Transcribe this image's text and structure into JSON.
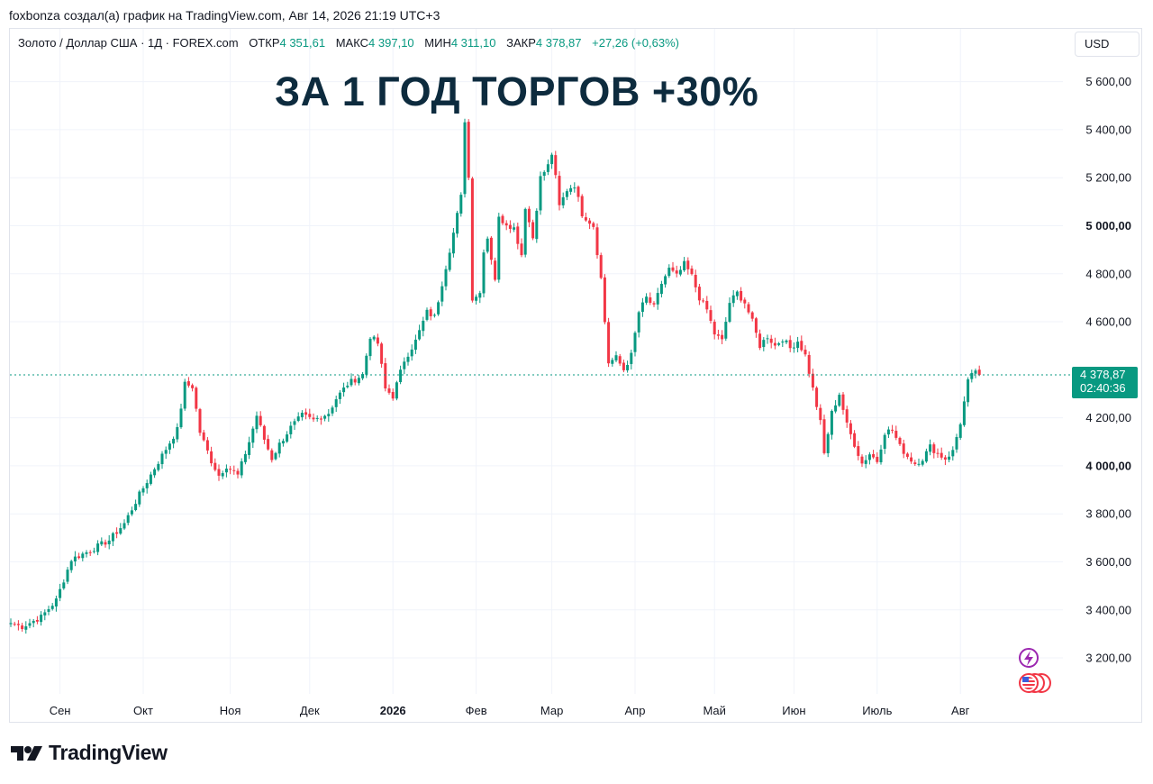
{
  "author_line": "foxbonza создал(а) график на TradingView.com, Авг 14, 2026 21:19 UTC+3",
  "legend": {
    "symbol": "Золото / Доллар США · 1Д · FOREX.com",
    "open_label": "ОТКР",
    "open_value": "4 351,61",
    "high_label": "МАКС",
    "high_value": "4 397,10",
    "low_label": "МИН",
    "low_value": "4 311,10",
    "close_label": "ЗАКР",
    "close_value": "4 378,87",
    "change": "+27,26 (+0,63%)"
  },
  "currency": "USD",
  "headline": "ЗА 1 ГОД ТОРГОВ +30%",
  "logo_text": "TradingView",
  "price_tag": {
    "price": "4 378,87",
    "timer": "02:40:36"
  },
  "colors": {
    "up": "#089981",
    "down": "#f23645",
    "headline": "#0d2b3e",
    "price_tag": "#089981",
    "grid": "#f0f3fa"
  },
  "icons": [
    "lightning-icon",
    "us-flag-icon"
  ],
  "chart_data": {
    "type": "candlestick",
    "symbol": "Золото / Доллар США",
    "interval": "1Д",
    "last_price": 4378.87,
    "ylim": [
      3050,
      5700
    ],
    "y_ticks": [
      {
        "value": 3200,
        "label": "3 200,00"
      },
      {
        "value": 3400,
        "label": "3 400,00"
      },
      {
        "value": 3600,
        "label": "3 600,00"
      },
      {
        "value": 3800,
        "label": "3 800,00"
      },
      {
        "value": 4000,
        "label": "4 000,00",
        "bold": true
      },
      {
        "value": 4200,
        "label": "4 200,00"
      },
      {
        "value": 4600,
        "label": "4 600,00"
      },
      {
        "value": 4800,
        "label": "4 800,00"
      },
      {
        "value": 5000,
        "label": "5 000,00",
        "bold": true
      },
      {
        "value": 5200,
        "label": "5 200,00"
      },
      {
        "value": 5400,
        "label": "5 400,00"
      },
      {
        "value": 5600,
        "label": "5 600,00"
      }
    ],
    "x_ticks": [
      {
        "index": 13,
        "label": "Сен"
      },
      {
        "index": 35,
        "label": "Окт"
      },
      {
        "index": 58,
        "label": "Ноя"
      },
      {
        "index": 79,
        "label": "Дек"
      },
      {
        "index": 101,
        "label": "2026",
        "bold": true
      },
      {
        "index": 123,
        "label": "Фев"
      },
      {
        "index": 143,
        "label": "Мар"
      },
      {
        "index": 165,
        "label": "Апр"
      },
      {
        "index": 186,
        "label": "Май"
      },
      {
        "index": 207,
        "label": "Июн"
      },
      {
        "index": 229,
        "label": "Июль"
      },
      {
        "index": 251,
        "label": "Авг"
      }
    ],
    "anchors": [
      [
        0,
        3345
      ],
      [
        3,
        3330
      ],
      [
        8,
        3370
      ],
      [
        12,
        3440
      ],
      [
        16,
        3610
      ],
      [
        20,
        3640
      ],
      [
        26,
        3690
      ],
      [
        30,
        3760
      ],
      [
        34,
        3880
      ],
      [
        38,
        3990
      ],
      [
        41,
        4070
      ],
      [
        44,
        4150
      ],
      [
        46,
        4340
      ],
      [
        48,
        4330
      ],
      [
        50,
        4140
      ],
      [
        53,
        4020
      ],
      [
        55,
        3960
      ],
      [
        57,
        4000
      ],
      [
        60,
        3960
      ],
      [
        63,
        4100
      ],
      [
        65,
        4210
      ],
      [
        67,
        4110
      ],
      [
        69,
        4030
      ],
      [
        71,
        4090
      ],
      [
        74,
        4160
      ],
      [
        77,
        4210
      ],
      [
        80,
        4190
      ],
      [
        84,
        4220
      ],
      [
        86,
        4280
      ],
      [
        89,
        4340
      ],
      [
        93,
        4380
      ],
      [
        95,
        4540
      ],
      [
        97,
        4510
      ],
      [
        99,
        4320
      ],
      [
        101,
        4290
      ],
      [
        104,
        4440
      ],
      [
        107,
        4520
      ],
      [
        110,
        4640
      ],
      [
        112,
        4620
      ],
      [
        114,
        4760
      ],
      [
        117,
        4970
      ],
      [
        119,
        5120
      ],
      [
        120,
        5440
      ],
      [
        121,
        5200
      ],
      [
        122,
        4700
      ],
      [
        124,
        4720
      ],
      [
        125,
        4900
      ],
      [
        126,
        4950
      ],
      [
        128,
        4780
      ],
      [
        129,
        5030
      ],
      [
        131,
        5010
      ],
      [
        133,
        4990
      ],
      [
        135,
        4880
      ],
      [
        136,
        5080
      ],
      [
        138,
        4950
      ],
      [
        140,
        5200
      ],
      [
        142,
        5250
      ],
      [
        143,
        5300
      ],
      [
        144,
        5200
      ],
      [
        145,
        5080
      ],
      [
        147,
        5150
      ],
      [
        149,
        5170
      ],
      [
        151,
        5050
      ],
      [
        154,
        5000
      ],
      [
        156,
        4780
      ],
      [
        157,
        4600
      ],
      [
        158,
        4430
      ],
      [
        160,
        4450
      ],
      [
        162,
        4400
      ],
      [
        164,
        4460
      ],
      [
        166,
        4640
      ],
      [
        168,
        4700
      ],
      [
        170,
        4660
      ],
      [
        172,
        4760
      ],
      [
        174,
        4820
      ],
      [
        176,
        4790
      ],
      [
        178,
        4840
      ],
      [
        180,
        4790
      ],
      [
        182,
        4700
      ],
      [
        184,
        4650
      ],
      [
        186,
        4550
      ],
      [
        188,
        4520
      ],
      [
        190,
        4680
      ],
      [
        192,
        4720
      ],
      [
        194,
        4680
      ],
      [
        196,
        4600
      ],
      [
        198,
        4500
      ],
      [
        200,
        4540
      ],
      [
        202,
        4500
      ],
      [
        204,
        4530
      ],
      [
        206,
        4490
      ],
      [
        208,
        4520
      ],
      [
        210,
        4460
      ],
      [
        212,
        4320
      ],
      [
        214,
        4180
      ],
      [
        215,
        4050
      ],
      [
        217,
        4220
      ],
      [
        219,
        4300
      ],
      [
        221,
        4170
      ],
      [
        223,
        4090
      ],
      [
        225,
        4010
      ],
      [
        227,
        4050
      ],
      [
        229,
        4020
      ],
      [
        231,
        4140
      ],
      [
        233,
        4150
      ],
      [
        235,
        4080
      ],
      [
        237,
        4040
      ],
      [
        239,
        4010
      ],
      [
        241,
        4030
      ],
      [
        243,
        4080
      ],
      [
        245,
        4050
      ],
      [
        247,
        4030
      ],
      [
        249,
        4060
      ],
      [
        251,
        4180
      ],
      [
        253,
        4350
      ],
      [
        255,
        4400
      ],
      [
        256,
        4378.87
      ]
    ]
  }
}
